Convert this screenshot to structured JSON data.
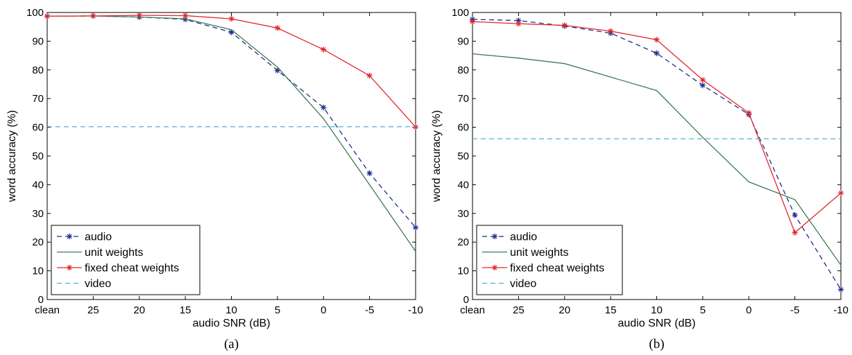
{
  "colors": {
    "audio": "#1f2a8c",
    "unit_weights": "#3b7a52",
    "fixed_cheat_weights": "#e0262a",
    "video": "#4fb0d6"
  },
  "chart_data": [
    {
      "type": "line",
      "caption": "(a)",
      "xlabel": "audio SNR (dB)",
      "ylabel": "word accuracy (%)",
      "categories": [
        "clean",
        "25",
        "20",
        "15",
        "10",
        "5",
        "0",
        "-5",
        "-10"
      ],
      "ylim": [
        0,
        100
      ],
      "yticks": [
        0,
        10,
        20,
        30,
        40,
        50,
        60,
        70,
        80,
        90,
        100
      ],
      "grid": false,
      "legend_position": "bottom-left",
      "series": [
        {
          "name": "audio",
          "style": "dashed-star",
          "values": [
            98.7,
            98.8,
            98.4,
            97.6,
            93.1,
            79.8,
            66.9,
            44.0,
            25.1
          ]
        },
        {
          "name": "unit weights",
          "style": "solid",
          "values": [
            98.7,
            98.8,
            98.4,
            97.8,
            94.0,
            81.0,
            63.0,
            40.0,
            16.8
          ]
        },
        {
          "name": "fixed cheat weights",
          "style": "solid-star",
          "values": [
            98.7,
            98.8,
            99.0,
            98.9,
            97.8,
            94.6,
            87.1,
            78.0,
            60.1
          ]
        },
        {
          "name": "video",
          "style": "dashed",
          "values": [
            60.2,
            60.2,
            60.2,
            60.2,
            60.2,
            60.2,
            60.2,
            60.2,
            60.2
          ]
        }
      ]
    },
    {
      "type": "line",
      "caption": "(b)",
      "xlabel": "audio SNR (dB)",
      "ylabel": "word accuracy (%)",
      "categories": [
        "clean",
        "25",
        "20",
        "15",
        "10",
        "5",
        "0",
        "-5",
        "-10"
      ],
      "ylim": [
        0,
        100
      ],
      "yticks": [
        0,
        10,
        20,
        30,
        40,
        50,
        60,
        70,
        80,
        90,
        100
      ],
      "grid": false,
      "legend_position": "bottom-left",
      "series": [
        {
          "name": "audio",
          "style": "dashed-star",
          "values": [
            97.6,
            97.2,
            95.3,
            92.8,
            85.8,
            74.6,
            64.5,
            29.4,
            3.5
          ]
        },
        {
          "name": "unit weights",
          "style": "solid",
          "values": [
            85.6,
            84.1,
            82.2,
            77.5,
            72.8,
            56.5,
            41.0,
            34.8,
            12.0
          ]
        },
        {
          "name": "fixed cheat weights",
          "style": "solid-star",
          "values": [
            96.8,
            96.1,
            95.5,
            93.5,
            90.5,
            76.5,
            65.0,
            23.3,
            37.1
          ]
        },
        {
          "name": "video",
          "style": "dashed",
          "values": [
            56.0,
            56.0,
            56.0,
            56.0,
            56.0,
            56.0,
            56.0,
            56.0,
            56.0
          ]
        }
      ]
    }
  ]
}
